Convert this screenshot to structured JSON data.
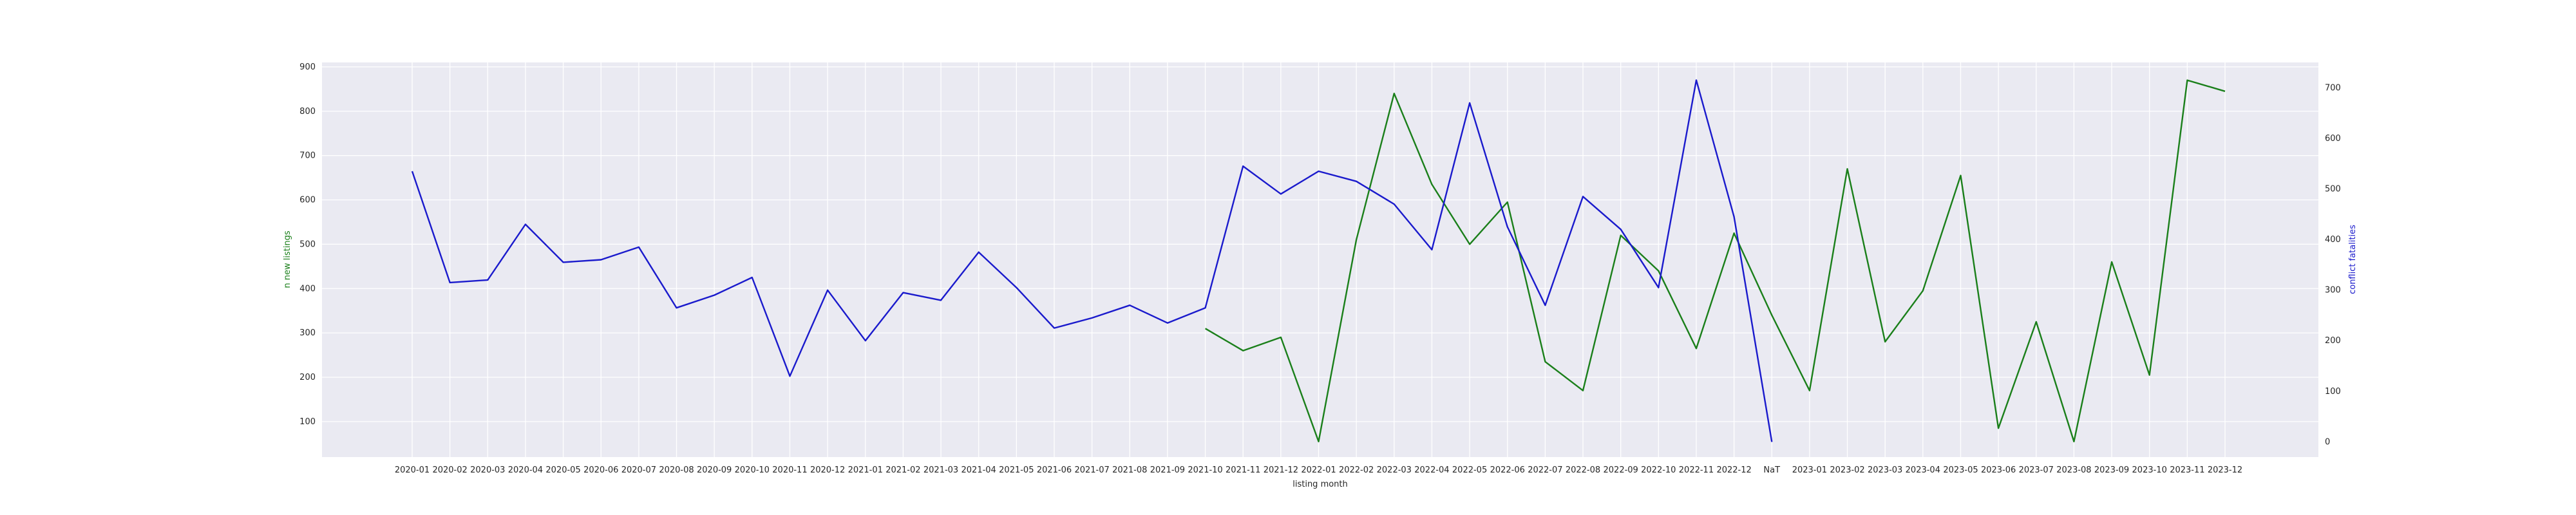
{
  "chart_data": {
    "type": "line",
    "xlabel": "listing month",
    "y_left_label": "n new listings",
    "y_right_label": "conflict fatalities",
    "y_left_ticks": [
      100,
      200,
      300,
      400,
      500,
      600,
      700,
      800,
      900
    ],
    "y_right_ticks": [
      0,
      100,
      200,
      300,
      400,
      500,
      600,
      700
    ],
    "y_left_lim": [
      20,
      910
    ],
    "y_right_lim": [
      -30,
      750
    ],
    "grid": true,
    "legend": "none",
    "categories": [
      "2020-01",
      "2020-02",
      "2020-03",
      "2020-04",
      "2020-05",
      "2020-06",
      "2020-07",
      "2020-08",
      "2020-09",
      "2020-10",
      "2020-11",
      "2020-12",
      "2021-01",
      "2021-02",
      "2021-03",
      "2021-04",
      "2021-05",
      "2021-06",
      "2021-07",
      "2021-08",
      "2021-09",
      "2021-10",
      "2021-11",
      "2021-12",
      "2022-01",
      "2022-02",
      "2022-03",
      "2022-04",
      "2022-05",
      "2022-06",
      "2022-07",
      "2022-08",
      "2022-09",
      "2022-10",
      "2022-11",
      "2022-12",
      "NaT",
      "2023-01",
      "2023-02",
      "2023-03",
      "2023-04",
      "2023-05",
      "2023-06",
      "2023-07",
      "2023-08",
      "2023-09",
      "2023-10",
      "2023-11",
      "2023-12"
    ],
    "series": [
      {
        "axis": "left",
        "color": "#1a7f1a",
        "values": [
          null,
          null,
          null,
          null,
          null,
          null,
          null,
          null,
          null,
          null,
          null,
          null,
          null,
          null,
          null,
          null,
          null,
          null,
          null,
          null,
          null,
          310,
          260,
          290,
          55,
          510,
          840,
          635,
          500,
          595,
          235,
          170,
          520,
          440,
          265,
          525,
          340,
          170,
          670,
          280,
          395,
          655,
          85,
          325,
          55,
          460,
          205,
          870,
          845
        ]
      },
      {
        "axis": "right",
        "color": "#1a1acc",
        "values": [
          535,
          315,
          320,
          430,
          355,
          360,
          385,
          265,
          290,
          325,
          130,
          300,
          200,
          295,
          280,
          375,
          305,
          225,
          245,
          270,
          235,
          265,
          545,
          490,
          535,
          515,
          470,
          380,
          670,
          425,
          270,
          485,
          420,
          305,
          715,
          445,
          0,
          null,
          null,
          null,
          null,
          null,
          null,
          null,
          null,
          null,
          null,
          null,
          null
        ]
      }
    ]
  }
}
